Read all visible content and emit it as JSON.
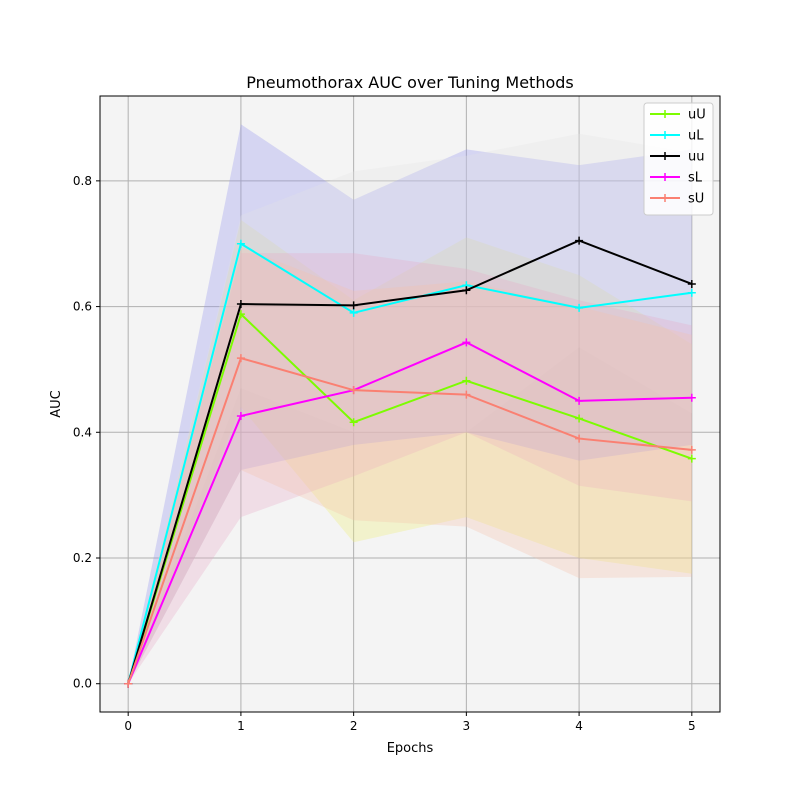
{
  "chart_data": {
    "type": "line",
    "title": "Pneumothorax AUC over Tuning Methods",
    "xlabel": "Epochs",
    "ylabel": "AUC",
    "x": [
      0,
      1,
      2,
      3,
      4,
      5
    ],
    "xlim": [
      -0.25,
      5.25
    ],
    "ylim": [
      -0.045,
      0.935
    ],
    "x_ticks": [
      "0",
      "1",
      "2",
      "3",
      "4",
      "5"
    ],
    "y_ticks": [
      "0.0",
      "0.2",
      "0.4",
      "0.6",
      "0.8"
    ],
    "grid": true,
    "legend_position": "top-right",
    "series": [
      {
        "name": "uU",
        "color": "#7cfc00",
        "values": [
          0.0,
          0.588,
          0.416,
          0.482,
          0.422,
          0.358
        ],
        "band_upper": [
          0.0,
          0.738,
          0.61,
          0.71,
          0.65,
          0.54
        ],
        "band_lower": [
          0.0,
          0.44,
          0.225,
          0.265,
          0.2,
          0.175
        ],
        "band_color": "#f0f070"
      },
      {
        "name": "uL",
        "color": "#00ffff",
        "values": [
          0.0,
          0.7,
          0.59,
          0.634,
          0.598,
          0.622
        ],
        "band_upper": [
          0.0,
          0.89,
          0.77,
          0.85,
          0.825,
          0.85
        ],
        "band_lower": [
          0.0,
          0.34,
          0.38,
          0.4,
          0.355,
          0.38
        ],
        "band_color": "#9090f0"
      },
      {
        "name": "uu",
        "color": "#000000",
        "values": [
          0.0,
          0.604,
          0.602,
          0.626,
          0.705,
          0.636
        ],
        "band_upper": [
          0.0,
          0.745,
          0.815,
          0.84,
          0.875,
          0.845
        ],
        "band_lower": [
          0.0,
          0.47,
          0.4,
          0.4,
          0.535,
          0.43
        ],
        "band_color": "#e6e6e6"
      },
      {
        "name": "sL",
        "color": "#ff00ff",
        "values": [
          0.0,
          0.426,
          0.467,
          0.543,
          0.45,
          0.455
        ],
        "band_upper": [
          0.0,
          0.685,
          0.685,
          0.66,
          0.61,
          0.57
        ],
        "band_lower": [
          0.0,
          0.265,
          0.33,
          0.4,
          0.315,
          0.29
        ],
        "band_color": "#e8a8c8"
      },
      {
        "name": "sU",
        "color": "#fa8072",
        "values": [
          0.0,
          0.518,
          0.467,
          0.46,
          0.39,
          0.372
        ],
        "band_upper": [
          0.0,
          0.695,
          0.625,
          0.64,
          0.6,
          0.555
        ],
        "band_lower": [
          0.0,
          0.34,
          0.26,
          0.25,
          0.168,
          0.17
        ],
        "band_color": "#f5c0a8"
      }
    ]
  }
}
